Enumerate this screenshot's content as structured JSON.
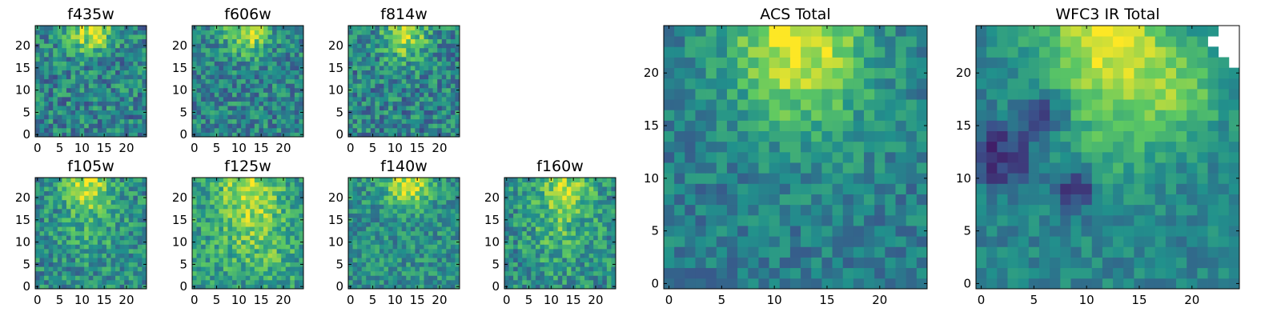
{
  "figure": {
    "background": "#ffffff",
    "colormap": "viridis",
    "palette": [
      "#440154",
      "#3b528b",
      "#21918c",
      "#5ec962",
      "#fde725"
    ]
  },
  "chart_data": [
    {
      "id": "f435w",
      "type": "heatmap",
      "title": "f435w",
      "size": 25,
      "xticks": [
        0,
        5,
        10,
        15,
        20
      ],
      "yticks": [
        0,
        5,
        10,
        15,
        20
      ],
      "xlim": [
        -0.5,
        24.5
      ],
      "ylim": [
        -0.5,
        24.5
      ],
      "features": [
        {
          "x": 12,
          "y": 23,
          "radius": 3.5,
          "strength": 0.45
        }
      ],
      "baseline": 0.45,
      "noise": 0.45,
      "seed": 11
    },
    {
      "id": "f606w",
      "type": "heatmap",
      "title": "f606w",
      "size": 25,
      "xticks": [
        0,
        5,
        10,
        15,
        20
      ],
      "yticks": [
        0,
        5,
        10,
        15,
        20
      ],
      "xlim": [
        -0.5,
        24.5
      ],
      "ylim": [
        -0.5,
        24.5
      ],
      "features": [
        {
          "x": 12,
          "y": 23,
          "radius": 3.5,
          "strength": 0.45
        }
      ],
      "baseline": 0.45,
      "noise": 0.42,
      "seed": 23
    },
    {
      "id": "f814w",
      "type": "heatmap",
      "title": "f814w",
      "size": 25,
      "xticks": [
        0,
        5,
        10,
        15,
        20
      ],
      "yticks": [
        0,
        5,
        10,
        15,
        20
      ],
      "xlim": [
        -0.5,
        24.5
      ],
      "ylim": [
        -0.5,
        24.5
      ],
      "features": [
        {
          "x": 12,
          "y": 22,
          "radius": 3.5,
          "strength": 0.45
        }
      ],
      "baseline": 0.45,
      "noise": 0.45,
      "seed": 37
    },
    {
      "id": "f105w",
      "type": "heatmap",
      "title": "f105w",
      "size": 25,
      "xticks": [
        0,
        5,
        10,
        15,
        20
      ],
      "yticks": [
        0,
        5,
        10,
        15,
        20
      ],
      "xlim": [
        -0.5,
        24.5
      ],
      "ylim": [
        -0.5,
        24.5
      ],
      "features": [
        {
          "x": 11,
          "y": 23,
          "radius": 3.5,
          "strength": 0.45
        },
        {
          "x": 12,
          "y": 14,
          "radius": 5,
          "strength": 0.15
        }
      ],
      "baseline": 0.48,
      "noise": 0.4,
      "seed": 41
    },
    {
      "id": "f125w",
      "type": "heatmap",
      "title": "f125w",
      "size": 25,
      "xticks": [
        0,
        5,
        10,
        15,
        20
      ],
      "yticks": [
        0,
        5,
        10,
        15,
        20
      ],
      "xlim": [
        -0.5,
        24.5
      ],
      "ylim": [
        -0.5,
        24.5
      ],
      "features": [
        {
          "x": 12,
          "y": 22,
          "radius": 4,
          "strength": 0.35
        },
        {
          "x": 14,
          "y": 12,
          "radius": 6,
          "strength": 0.2
        }
      ],
      "baseline": 0.55,
      "noise": 0.4,
      "seed": 53
    },
    {
      "id": "f140w",
      "type": "heatmap",
      "title": "f140w",
      "size": 25,
      "xticks": [
        0,
        5,
        10,
        15,
        20
      ],
      "yticks": [
        0,
        5,
        10,
        15,
        20
      ],
      "xlim": [
        -0.5,
        24.5
      ],
      "ylim": [
        -0.5,
        24.5
      ],
      "features": [
        {
          "x": 13,
          "y": 23,
          "radius": 3.5,
          "strength": 0.45
        }
      ],
      "baseline": 0.5,
      "noise": 0.35,
      "seed": 67
    },
    {
      "id": "f160w",
      "type": "heatmap",
      "title": "f160w",
      "size": 25,
      "xticks": [
        0,
        5,
        10,
        15,
        20
      ],
      "yticks": [
        0,
        5,
        10,
        15,
        20
      ],
      "xlim": [
        -0.5,
        24.5
      ],
      "ylim": [
        -0.5,
        24.5
      ],
      "features": [
        {
          "x": 13,
          "y": 22,
          "radius": 4,
          "strength": 0.35
        },
        {
          "x": 12,
          "y": 12,
          "radius": 5,
          "strength": 0.15
        }
      ],
      "baseline": 0.5,
      "noise": 0.42,
      "seed": 79
    },
    {
      "id": "acs-total",
      "type": "heatmap",
      "title": "ACS Total",
      "size": 25,
      "xticks": [
        0,
        5,
        10,
        15,
        20
      ],
      "yticks": [
        0,
        5,
        10,
        15,
        20
      ],
      "xlim": [
        -0.5,
        24.5
      ],
      "ylim": [
        -0.5,
        24.5
      ],
      "features": [
        {
          "x": 12,
          "y": 23,
          "radius": 4.5,
          "strength": 0.5
        },
        {
          "x": 14,
          "y": 17,
          "radius": 5,
          "strength": 0.12
        }
      ],
      "baseline": 0.42,
      "noise": 0.28,
      "seed": 97
    },
    {
      "id": "wfc3-ir-total",
      "type": "heatmap",
      "title": "WFC3 IR Total",
      "size": 25,
      "xticks": [
        0,
        5,
        10,
        15,
        20
      ],
      "yticks": [
        0,
        5,
        10,
        15,
        20
      ],
      "xlim": [
        -0.5,
        24.5
      ],
      "ylim": [
        -0.5,
        24.5
      ],
      "features": [
        {
          "x": 12,
          "y": 23,
          "radius": 4.5,
          "strength": 0.5
        },
        {
          "x": 19,
          "y": 18,
          "radius": 3,
          "strength": 0.25
        },
        {
          "x": 12,
          "y": 13,
          "radius": 4,
          "strength": 0.15
        },
        {
          "x": 2,
          "y": 12,
          "radius": 2,
          "strength": -0.35
        },
        {
          "x": 6,
          "y": 16,
          "radius": 1.5,
          "strength": -0.35
        },
        {
          "x": 9,
          "y": 9,
          "radius": 1.5,
          "strength": -0.35
        }
      ],
      "baseline": 0.45,
      "noise": 0.22,
      "seed": 113,
      "missing_cells": [
        [
          23,
          24
        ],
        [
          24,
          24
        ],
        [
          23,
          23
        ],
        [
          24,
          23
        ],
        [
          24,
          22
        ],
        [
          22,
          23
        ],
        [
          23,
          22
        ],
        [
          24,
          21
        ]
      ]
    }
  ]
}
